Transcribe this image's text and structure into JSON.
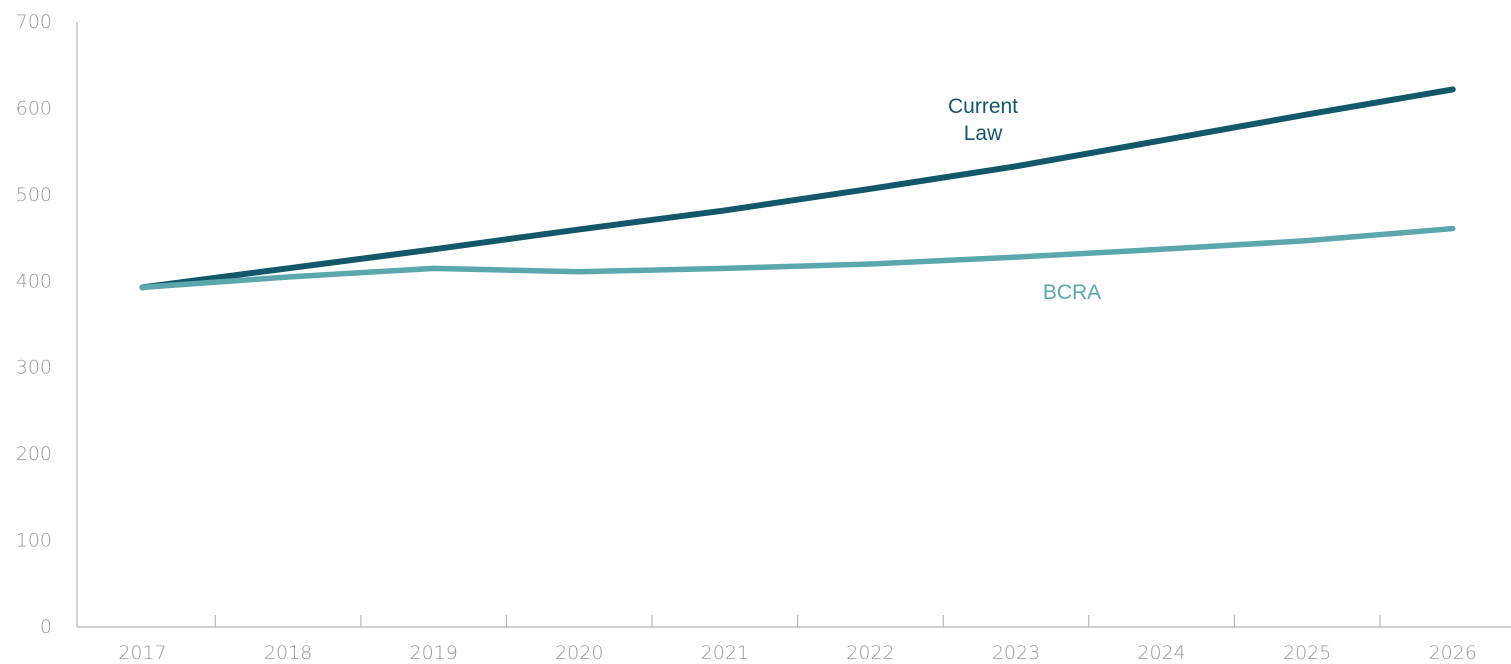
{
  "chart_data": {
    "type": "line",
    "title": "",
    "xlabel": "",
    "ylabel": "",
    "x": [
      2017,
      2018,
      2019,
      2020,
      2021,
      2022,
      2023,
      2024,
      2025,
      2026
    ],
    "xlim": [
      2016.55,
      2026.4
    ],
    "ylim": [
      0,
      700
    ],
    "yticks": [
      0,
      100,
      200,
      300,
      400,
      500,
      600,
      700
    ],
    "yticklabels": [
      "0",
      "100",
      "200",
      "300",
      "400",
      "500",
      "600",
      "700"
    ],
    "xticklabels": [
      "2017",
      "2018",
      "2019",
      "2020",
      "2021",
      "2022",
      "2023",
      "2024",
      "2025",
      "2026"
    ],
    "grid": false,
    "legend": "none",
    "series": [
      {
        "name": "Current Law",
        "label_lines": [
          "Current",
          "Law"
        ],
        "color": "#13586a",
        "values": [
          393,
          415,
          437,
          460,
          482,
          507,
          533,
          563,
          593,
          622
        ]
      },
      {
        "name": "BCRA",
        "label_lines": [
          "BCRA"
        ],
        "color": "#5aa8ae",
        "values": [
          393,
          405,
          415,
          411,
          415,
          420,
          428,
          437,
          447,
          461
        ]
      }
    ]
  }
}
